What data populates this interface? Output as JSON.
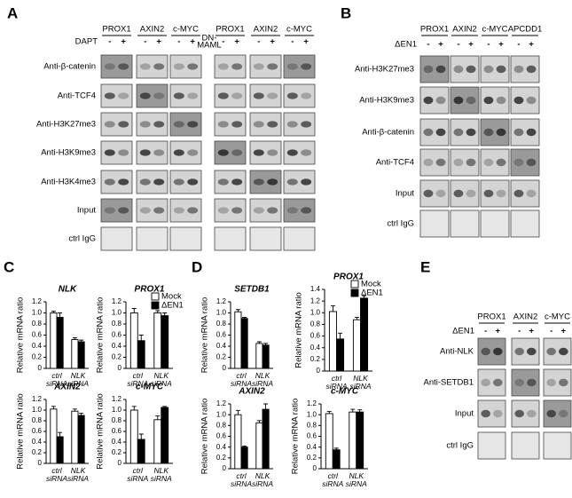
{
  "panels": [
    "A",
    "B",
    "C",
    "D",
    "E"
  ],
  "blots": {
    "A": {
      "columns": [
        "PROX1",
        "AXIN2",
        "c-MYC",
        "PROX1",
        "AXIN2",
        "c-MYC"
      ],
      "condition": "DAPT",
      "condition2": [
        "DN-",
        "MAML"
      ],
      "signs": [
        "-",
        "+"
      ],
      "rows": [
        "Anti-β-catenin",
        "Anti-TCF4",
        "Anti-H3K27me3",
        "Anti-H3K9me3",
        "Anti-H3K4me3",
        "Input",
        "ctrl IgG"
      ]
    },
    "B": {
      "columns": [
        "PROX1",
        "AXIN2",
        "c-MYC",
        "APCDD1"
      ],
      "condition": "ΔEN1",
      "signs": [
        "-",
        "+"
      ],
      "rows": [
        "Anti-H3K27me3",
        "Anti-H3K9me3",
        "Anti-β-catenin",
        "Anti-TCF4",
        "Input",
        "ctrl IgG"
      ]
    },
    "E": {
      "columns": [
        "PROX1",
        "AXIN2",
        "c-MYC"
      ],
      "condition": "ΔEN1",
      "signs": [
        "-",
        "+"
      ],
      "rows": [
        "Anti-NLK",
        "Anti-SETDB1",
        "Input",
        "ctrl IgG"
      ]
    }
  },
  "chart_data": [
    {
      "type": "bar",
      "title": "NLK",
      "ylabel": "Relative mRNA ratio",
      "categories": [
        "ctrl siRNA",
        "NLK siRNA"
      ],
      "ylim": [
        0,
        1.2
      ],
      "yticks": [
        0,
        0.2,
        0.4,
        0.6,
        0.8,
        {
          "value": 1,
          "label": "1.0"
        },
        1.2
      ],
      "series": [
        {
          "color": "#ffffff",
          "values": [
            1.0,
            0.52
          ],
          "errors": [
            0.03,
            0.03
          ]
        },
        {
          "color": "#000000",
          "values": [
            0.92,
            0.48
          ],
          "errors": [
            0.08,
            0.03
          ]
        }
      ]
    },
    {
      "type": "bar",
      "title": "PROX1",
      "ylabel": "Relative mRNA ratio",
      "categories": [
        "ctrl siRNA",
        "NLK siRNA"
      ],
      "ylim": [
        0,
        1.2
      ],
      "yticks": [
        0,
        0.2,
        0.4,
        0.6,
        0.8,
        {
          "value": 1,
          "label": "1.0"
        },
        1.2
      ],
      "legend": "upper right",
      "series": [
        {
          "name": "Mock",
          "color": "#ffffff",
          "values": [
            1.0,
            1.0
          ],
          "errors": [
            0.08,
            0.04
          ]
        },
        {
          "name": "ΔEN1",
          "color": "#000000",
          "values": [
            0.5,
            0.95
          ],
          "errors": [
            0.1,
            0.05
          ]
        }
      ]
    },
    {
      "type": "bar",
      "title": "AXIN2",
      "ylabel": "Relative mRNA ratio",
      "categories": [
        "ctrl siRNA",
        "NLK siRNA"
      ],
      "ylim": [
        0,
        1.2
      ],
      "yticks": [
        0,
        0.2,
        0.4,
        0.6,
        0.8,
        {
          "value": 1,
          "label": "1.0"
        },
        1.2
      ],
      "series": [
        {
          "color": "#ffffff",
          "values": [
            1.02,
            0.98
          ],
          "errors": [
            0.05,
            0.04
          ]
        },
        {
          "color": "#000000",
          "values": [
            0.5,
            0.9
          ],
          "errors": [
            0.08,
            0.04
          ]
        }
      ]
    },
    {
      "type": "bar",
      "title": "c-MYC",
      "ylabel": "Relative mRNA ratio",
      "categories": [
        "ctrl siRNA",
        "NLK siRNA"
      ],
      "ylim": [
        0,
        1.2
      ],
      "yticks": [
        0,
        0.2,
        0.4,
        0.6,
        0.8,
        {
          "value": 1,
          "label": "1.0"
        },
        1.2
      ],
      "series": [
        {
          "color": "#ffffff",
          "values": [
            1.0,
            0.82
          ],
          "errors": [
            0.07,
            0.07
          ]
        },
        {
          "color": "#000000",
          "values": [
            0.45,
            1.05
          ],
          "errors": [
            0.1,
            0.02
          ]
        }
      ]
    },
    {
      "type": "bar",
      "title": "SETDB1",
      "ylabel": "Relative mRNA ratio",
      "categories": [
        "ctrl siRNA",
        "NLK siRNA"
      ],
      "ylim": [
        0,
        1.2
      ],
      "yticks": [
        0,
        0.2,
        0.4,
        0.6,
        0.8,
        {
          "value": 1,
          "label": "1.0"
        },
        1.2
      ],
      "series": [
        {
          "color": "#ffffff",
          "values": [
            1.02,
            0.45
          ],
          "errors": [
            0.04,
            0.03
          ]
        },
        {
          "color": "#000000",
          "values": [
            0.9,
            0.42
          ],
          "errors": [
            0.02,
            0.03
          ]
        }
      ]
    },
    {
      "type": "bar",
      "title": "PROX1",
      "ylabel": "Relative mRNA ratio",
      "categories": [
        "ctrl siRNA",
        "NLK siRNA"
      ],
      "ylim": [
        0,
        1.4
      ],
      "yticks": [
        0,
        0.2,
        0.4,
        0.6,
        0.8,
        {
          "value": 1,
          "label": "1.0"
        },
        1.2,
        1.4
      ],
      "legend": "upper right",
      "series": [
        {
          "name": "Mock",
          "color": "#ffffff",
          "values": [
            1.02,
            0.88
          ],
          "errors": [
            0.1,
            0.04
          ]
        },
        {
          "name": "ΔEN1",
          "color": "#000000",
          "values": [
            0.55,
            1.25
          ],
          "errors": [
            0.1,
            0.04
          ]
        }
      ]
    },
    {
      "type": "bar",
      "title": "AXIN2",
      "ylabel": "Relative mRNA ratio",
      "categories": [
        "ctrl siRNA",
        "NLK siRNA"
      ],
      "ylim": [
        0,
        1.2
      ],
      "yticks": [
        0,
        0.2,
        0.4,
        0.6,
        0.8,
        {
          "value": 1,
          "label": "1.0"
        },
        1.2
      ],
      "series": [
        {
          "color": "#ffffff",
          "values": [
            1.0,
            0.85
          ],
          "errors": [
            0.08,
            0.04
          ]
        },
        {
          "color": "#000000",
          "values": [
            0.4,
            1.1
          ],
          "errors": [
            0.02,
            0.1
          ]
        }
      ]
    },
    {
      "type": "bar",
      "title": "c-MYC",
      "ylabel": "Relative mRNA ratio",
      "categories": [
        "ctrl siRNA",
        "NLK siRNA"
      ],
      "ylim": [
        0,
        1.2
      ],
      "yticks": [
        0,
        0.2,
        0.4,
        0.6,
        0.8,
        {
          "value": 1,
          "label": "1.0"
        },
        1.2
      ],
      "series": [
        {
          "color": "#ffffff",
          "values": [
            1.02,
            1.05
          ],
          "errors": [
            0.04,
            0.05
          ]
        },
        {
          "color": "#000000",
          "values": [
            0.35,
            1.05
          ],
          "errors": [
            0.03,
            0.04
          ]
        }
      ]
    }
  ]
}
